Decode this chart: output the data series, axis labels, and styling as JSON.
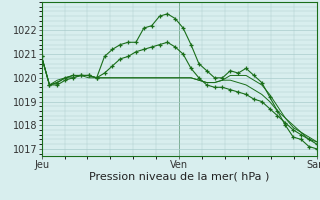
{
  "bg_color": "#d8eeee",
  "grid_color": "#aacccc",
  "line_color": "#1a6e1a",
  "xlabel": "Pression niveau de la mer( hPa )",
  "xlabel_fontsize": 8,
  "yticks": [
    1017,
    1018,
    1019,
    1020,
    1021,
    1022
  ],
  "ylim": [
    1016.7,
    1023.2
  ],
  "xlim": [
    0,
    48
  ],
  "day_ticks": [
    0,
    24,
    48
  ],
  "day_labels": [
    "Jeu",
    "Ven",
    "Sam"
  ],
  "series": [
    [
      1020.9,
      1019.7,
      1019.7,
      1019.9,
      1020.0,
      1020.1,
      1020.1,
      1020.0,
      1020.9,
      1021.2,
      1021.4,
      1021.5,
      1021.5,
      1022.1,
      1022.2,
      1022.6,
      1022.7,
      1022.5,
      1022.1,
      1021.4,
      1020.6,
      1020.3,
      1020.0,
      1020.0,
      1020.3,
      1020.2,
      1020.4,
      1020.1,
      1019.8,
      1019.2,
      1018.6,
      1018.0,
      1017.5,
      1017.4,
      1017.1,
      1017.0
    ],
    [
      1020.9,
      1019.7,
      1019.8,
      1020.0,
      1020.1,
      1020.1,
      1020.1,
      1020.0,
      1020.2,
      1020.5,
      1020.8,
      1020.9,
      1021.1,
      1021.2,
      1021.3,
      1021.4,
      1021.5,
      1021.3,
      1021.0,
      1020.4,
      1020.0,
      1019.7,
      1019.6,
      1019.6,
      1019.5,
      1019.4,
      1019.3,
      1019.1,
      1019.0,
      1018.7,
      1018.4,
      1018.1,
      1017.8,
      1017.6,
      1017.4,
      1017.2
    ],
    [
      1020.9,
      1019.7,
      1019.8,
      1020.0,
      1020.1,
      1020.1,
      1020.1,
      1020.0,
      1020.0,
      1020.0,
      1020.0,
      1020.0,
      1020.0,
      1020.0,
      1020.0,
      1020.0,
      1020.0,
      1020.0,
      1020.0,
      1020.0,
      1019.9,
      1019.8,
      1019.8,
      1019.9,
      1019.9,
      1019.8,
      1019.7,
      1019.5,
      1019.3,
      1019.0,
      1018.6,
      1018.3,
      1018.0,
      1017.7,
      1017.5,
      1017.3
    ],
    [
      1020.9,
      1019.7,
      1019.9,
      1020.0,
      1020.0,
      1020.1,
      1020.0,
      1020.0,
      1020.0,
      1020.0,
      1020.0,
      1020.0,
      1020.0,
      1020.0,
      1020.0,
      1020.0,
      1020.0,
      1020.0,
      1020.0,
      1020.0,
      1019.9,
      1019.8,
      1019.8,
      1019.9,
      1020.1,
      1020.1,
      1020.1,
      1019.9,
      1019.7,
      1019.3,
      1018.8,
      1018.3,
      1017.9,
      1017.7,
      1017.4,
      1017.3
    ]
  ],
  "has_markers": [
    true,
    true,
    false,
    false
  ],
  "tick_fontsize": 7,
  "figsize": [
    3.2,
    2.0
  ],
  "dpi": 100
}
